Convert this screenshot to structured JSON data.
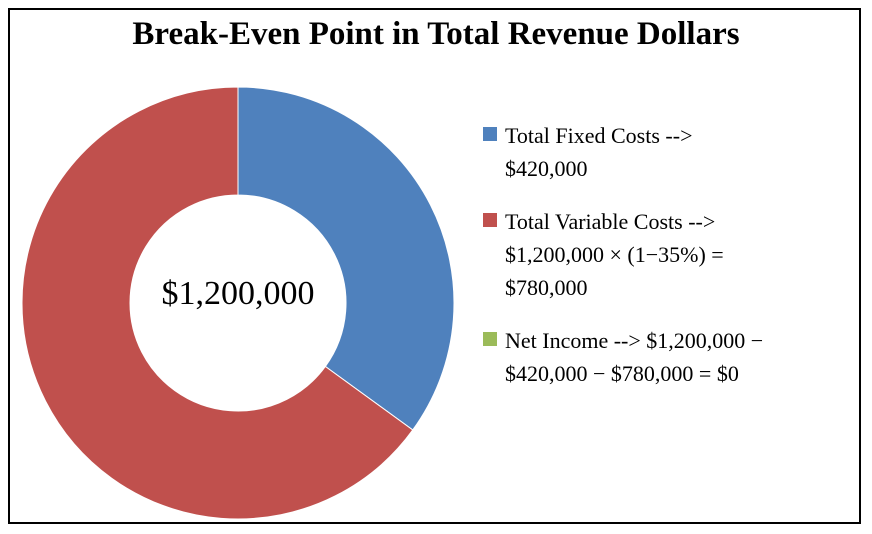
{
  "chart_data": {
    "type": "pie",
    "title": "Break-Even Point in Total Revenue Dollars",
    "center_label": "$1,200,000",
    "categories": [
      "Total Fixed Costs",
      "Total Variable Costs",
      "Net Income"
    ],
    "values": [
      420000,
      780000,
      0
    ],
    "colors": [
      "#4f81bd",
      "#c0504d",
      "#9bbb59"
    ],
    "donut": true,
    "legend_placement": "right",
    "legend": [
      {
        "line1": "Total Fixed Costs -->",
        "line2": "$420,000",
        "line3": ""
      },
      {
        "line1": "Total Variable Costs -->",
        "line2": "$1,200,000 × (1−35%) =",
        "line3": "$780,000"
      },
      {
        "line1": "Net Income --> $1,200,000 −",
        "line2": "$420,000 − $780,000 = $0",
        "line3": ""
      }
    ]
  }
}
